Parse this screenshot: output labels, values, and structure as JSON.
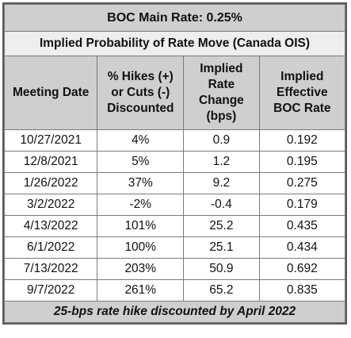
{
  "title": "BOC Main Rate: 0.25%",
  "subtitle": "Implied Probability of Rate Move (Canada OIS)",
  "columns": [
    [
      "Meeting Date"
    ],
    [
      "% Hikes (+)",
      "or Cuts (-)",
      "Discounted"
    ],
    [
      "Implied",
      "Rate",
      "Change",
      "(bps)"
    ],
    [
      "Implied",
      "Effective",
      "BOC Rate"
    ]
  ],
  "rows": [
    [
      "10/27/2021",
      "4%",
      "0.9",
      "0.192"
    ],
    [
      "12/8/2021",
      "5%",
      "1.2",
      "0.195"
    ],
    [
      "1/26/2022",
      "37%",
      "9.2",
      "0.275"
    ],
    [
      "3/2/2022",
      "-2%",
      "-0.4",
      "0.179"
    ],
    [
      "4/13/2022",
      "101%",
      "25.2",
      "0.435"
    ],
    [
      "6/1/2022",
      "100%",
      "25.1",
      "0.434"
    ],
    [
      "7/13/2022",
      "203%",
      "50.9",
      "0.692"
    ],
    [
      "9/7/2022",
      "261%",
      "65.2",
      "0.835"
    ]
  ],
  "footer": "25-bps rate hike discounted by April 2022",
  "colors": {
    "header_fill": "#d0cece",
    "subtitle_fill": "#eeeeee",
    "border": "#7a7a7a"
  }
}
